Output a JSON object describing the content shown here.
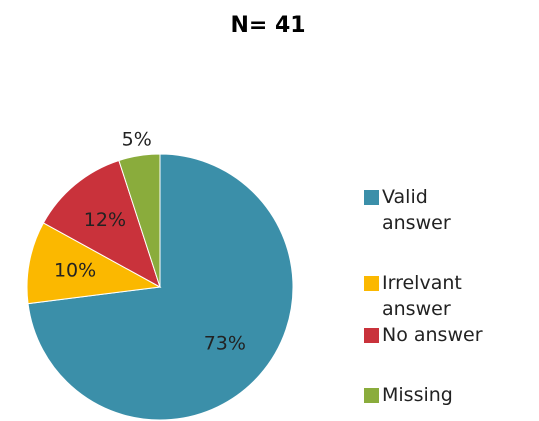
{
  "chart_data": {
    "type": "pie",
    "title": "N= 41",
    "categories": [
      "Valid answer",
      "Irrelvant answer",
      "No answer",
      "Missing"
    ],
    "values": [
      73,
      10,
      12,
      5
    ],
    "value_labels": [
      "73%",
      "10%",
      "12%",
      "5%"
    ],
    "colors": [
      "#3b8fa9",
      "#fbb800",
      "#c9323b",
      "#8aac3c"
    ],
    "legend": "right"
  }
}
